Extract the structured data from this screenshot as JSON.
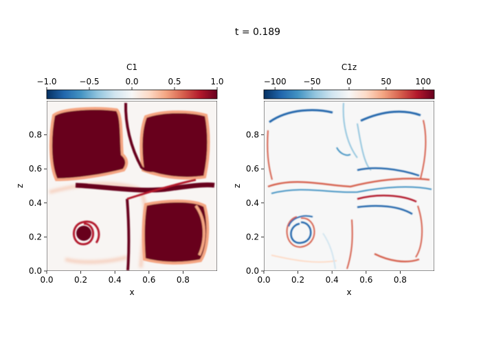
{
  "figure": {
    "title": "t = 0.189"
  },
  "chart_data": [
    {
      "type": "heatmap",
      "title": "",
      "colorbar": {
        "label": "C1",
        "colormap": "RdBu_r",
        "range": [
          -1.0,
          1.0
        ],
        "ticks": [
          -1.0,
          -0.5,
          0.0,
          0.5,
          1.0
        ],
        "tick_labels": [
          "−1.0",
          "−0.5",
          "0.0",
          "0.5",
          "1.0"
        ]
      },
      "xlabel": "x",
      "ylabel": "z",
      "xlim": [
        0,
        1
      ],
      "ylim": [
        0,
        1
      ],
      "xticks": [
        0.0,
        0.2,
        0.4,
        0.6,
        0.8
      ],
      "xtick_labels": [
        "0.0",
        "0.2",
        "0.4",
        "0.6",
        "0.8"
      ],
      "yticks": [
        0.0,
        0.2,
        0.4,
        0.6,
        0.8
      ],
      "ytick_labels": [
        "0.0",
        "0.2",
        "0.4",
        "0.6",
        "0.8"
      ],
      "field_description_features": {
        "blobs": [
          {
            "region": "top-left",
            "value": 1.0,
            "x": [
              0.03,
              0.45
            ],
            "z": [
              0.52,
              0.92
            ]
          },
          {
            "region": "top-right",
            "value": 1.0,
            "x": [
              0.56,
              0.94
            ],
            "z": [
              0.55,
              0.93
            ]
          },
          {
            "region": "bottom-right",
            "value": 1.0,
            "x": [
              0.56,
              0.92
            ],
            "z": [
              0.05,
              0.4
            ]
          },
          {
            "region": "bottom-left spiral",
            "value": 0.9,
            "x": [
              0.15,
              0.3
            ],
            "z": [
              0.14,
              0.3
            ]
          }
        ],
        "background_value": 0.0
      }
    },
    {
      "type": "heatmap",
      "title": "",
      "colorbar": {
        "label": "C1z",
        "colormap": "RdBu_r",
        "range": [
          -115,
          115
        ],
        "ticks": [
          -100,
          -50,
          0,
          50,
          100
        ],
        "tick_labels": [
          "−100",
          "−50",
          "0",
          "50",
          "100"
        ]
      },
      "xlabel": "x",
      "ylabel": "z",
      "xlim": [
        0,
        1
      ],
      "ylim": [
        0,
        1
      ],
      "xticks": [
        0.0,
        0.2,
        0.4,
        0.6,
        0.8
      ],
      "xtick_labels": [
        "0.0",
        "0.2",
        "0.4",
        "0.6",
        "0.8"
      ],
      "yticks": [
        0.0,
        0.2,
        0.4,
        0.6,
        0.8
      ],
      "ytick_labels": [
        "0.0",
        "0.2",
        "0.4",
        "0.6",
        "0.8"
      ],
      "background_value": 0
    }
  ]
}
